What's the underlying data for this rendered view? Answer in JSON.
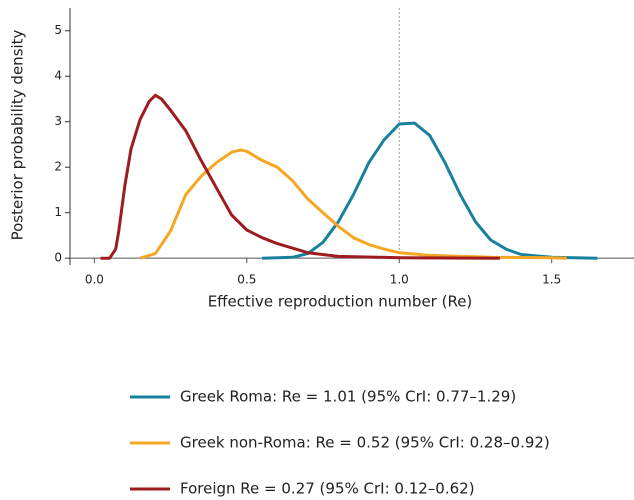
{
  "chart_data": {
    "type": "line",
    "xlabel": "Effective reproduction number (Re)",
    "ylabel": "Posterior probability density",
    "xlim": [
      -0.08,
      1.77
    ],
    "xticks": [
      {
        "value": 0,
        "label": "0.0"
      },
      0.5,
      {
        "value": 1,
        "label": "1.0"
      },
      1.5
    ],
    "ylim": [
      -0.15,
      5.5
    ],
    "yticks": [
      0,
      1,
      2,
      3,
      4,
      5
    ],
    "vline": 1,
    "series": [
      {
        "name": "Greek Roma: Re = 1.01 (95% CrI: 0.77–1.29)",
        "color": "#17819f",
        "x": [
          0.55,
          0.65,
          0.7,
          0.75,
          0.8,
          0.85,
          0.9,
          0.95,
          1.0,
          1.05,
          1.1,
          1.15,
          1.2,
          1.25,
          1.3,
          1.35,
          1.4,
          1.5,
          1.65
        ],
        "values": [
          0,
          0.02,
          0.1,
          0.35,
          0.8,
          1.4,
          2.1,
          2.6,
          2.95,
          2.97,
          2.7,
          2.1,
          1.4,
          0.8,
          0.4,
          0.2,
          0.08,
          0.02,
          0
        ]
      },
      {
        "name": "Greek non-Roma: Re = 0.52 (95% CrI: 0.28–0.92)",
        "color": "#f5a623",
        "x": [
          0.15,
          0.2,
          0.25,
          0.3,
          0.35,
          0.4,
          0.45,
          0.48,
          0.5,
          0.55,
          0.6,
          0.65,
          0.7,
          0.75,
          0.8,
          0.85,
          0.9,
          0.95,
          1.0,
          1.1,
          1.3,
          1.5,
          1.55
        ],
        "values": [
          0,
          0.1,
          0.6,
          1.4,
          1.8,
          2.1,
          2.33,
          2.38,
          2.35,
          2.15,
          2.0,
          1.7,
          1.3,
          1.0,
          0.7,
          0.45,
          0.3,
          0.2,
          0.12,
          0.06,
          0.02,
          0.01,
          0
        ]
      },
      {
        "name": "Foreign Re = 0.27 (95% CrI: 0.12–0.62)",
        "color": "#9e1b1f",
        "x": [
          0.02,
          0.05,
          0.07,
          0.08,
          0.1,
          0.12,
          0.15,
          0.18,
          0.2,
          0.22,
          0.25,
          0.3,
          0.35,
          0.4,
          0.45,
          0.5,
          0.55,
          0.6,
          0.7,
          0.8,
          1.0,
          1.33
        ],
        "values": [
          0,
          0,
          0.2,
          0.6,
          1.6,
          2.4,
          3.05,
          3.45,
          3.58,
          3.5,
          3.25,
          2.8,
          2.15,
          1.55,
          0.95,
          0.62,
          0.45,
          0.32,
          0.12,
          0.04,
          0.01,
          0
        ]
      }
    ]
  }
}
